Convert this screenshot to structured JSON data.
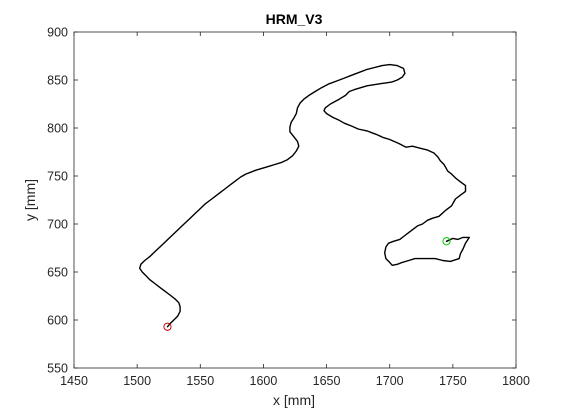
{
  "chart_data": {
    "type": "line",
    "title": "HRM_V3",
    "xlabel": "x [mm]",
    "ylabel": "y [mm]",
    "xlim": [
      1450,
      1800
    ],
    "ylim": [
      550,
      900
    ],
    "xticks": [
      1450,
      1500,
      1550,
      1600,
      1650,
      1700,
      1750,
      1800
    ],
    "yticks": [
      550,
      600,
      650,
      700,
      750,
      800,
      850,
      900
    ],
    "grid": false,
    "box": true,
    "series": [
      {
        "line_color": "#000000",
        "points": [
          [
            1745,
            682
          ],
          [
            1750,
            685
          ],
          [
            1754,
            684
          ],
          [
            1758,
            686
          ],
          [
            1763,
            686
          ],
          [
            1760,
            680
          ],
          [
            1758,
            674
          ],
          [
            1756,
            669
          ],
          [
            1755,
            664
          ],
          [
            1748,
            661
          ],
          [
            1742,
            662
          ],
          [
            1736,
            664
          ],
          [
            1728,
            664
          ],
          [
            1720,
            664
          ],
          [
            1715,
            662
          ],
          [
            1710,
            660
          ],
          [
            1706,
            658
          ],
          [
            1702,
            657
          ],
          [
            1700,
            660
          ],
          [
            1697,
            664
          ],
          [
            1696,
            670
          ],
          [
            1697,
            676
          ],
          [
            1699,
            680
          ],
          [
            1703,
            682
          ],
          [
            1708,
            684
          ],
          [
            1712,
            688
          ],
          [
            1714,
            690
          ],
          [
            1718,
            694
          ],
          [
            1722,
            698
          ],
          [
            1726,
            700
          ],
          [
            1730,
            704
          ],
          [
            1734,
            706
          ],
          [
            1739,
            708
          ],
          [
            1744,
            714
          ],
          [
            1749,
            719
          ],
          [
            1752,
            726
          ],
          [
            1756,
            730
          ],
          [
            1760,
            734
          ],
          [
            1760,
            740
          ],
          [
            1756,
            744
          ],
          [
            1752,
            748
          ],
          [
            1749,
            752
          ],
          [
            1746,
            755
          ],
          [
            1743,
            762
          ],
          [
            1740,
            766
          ],
          [
            1738,
            770
          ],
          [
            1735,
            774
          ],
          [
            1730,
            777
          ],
          [
            1724,
            779
          ],
          [
            1718,
            781
          ],
          [
            1713,
            780
          ],
          [
            1707,
            784
          ],
          [
            1700,
            788
          ],
          [
            1695,
            790
          ],
          [
            1690,
            793
          ],
          [
            1686,
            795
          ],
          [
            1682,
            797
          ],
          [
            1675,
            799
          ],
          [
            1670,
            802
          ],
          [
            1664,
            805
          ],
          [
            1660,
            808
          ],
          [
            1655,
            811
          ],
          [
            1650,
            815
          ],
          [
            1648,
            818
          ],
          [
            1649,
            821
          ],
          [
            1653,
            825
          ],
          [
            1660,
            830
          ],
          [
            1665,
            834
          ],
          [
            1668,
            838
          ],
          [
            1672,
            840
          ],
          [
            1677,
            842
          ],
          [
            1682,
            844
          ],
          [
            1687,
            845
          ],
          [
            1692,
            846
          ],
          [
            1697,
            847
          ],
          [
            1702,
            848
          ],
          [
            1706,
            850
          ],
          [
            1710,
            853
          ],
          [
            1712,
            857
          ],
          [
            1711,
            862
          ],
          [
            1706,
            865
          ],
          [
            1700,
            866
          ],
          [
            1694,
            865
          ],
          [
            1688,
            863
          ],
          [
            1682,
            861
          ],
          [
            1676,
            858
          ],
          [
            1670,
            855
          ],
          [
            1664,
            852
          ],
          [
            1658,
            849
          ],
          [
            1652,
            846
          ],
          [
            1646,
            842
          ],
          [
            1641,
            838
          ],
          [
            1636,
            834
          ],
          [
            1632,
            830
          ],
          [
            1629,
            826
          ],
          [
            1627,
            821
          ],
          [
            1626,
            815
          ],
          [
            1624,
            810
          ],
          [
            1622,
            806
          ],
          [
            1621,
            801
          ],
          [
            1621,
            796
          ],
          [
            1624,
            791
          ],
          [
            1627,
            786
          ],
          [
            1628,
            781
          ],
          [
            1626,
            776
          ],
          [
            1623,
            771
          ],
          [
            1619,
            767
          ],
          [
            1614,
            764
          ],
          [
            1609,
            762
          ],
          [
            1604,
            760
          ],
          [
            1599,
            758
          ],
          [
            1594,
            756
          ],
          [
            1590,
            754
          ],
          [
            1586,
            752
          ],
          [
            1582,
            749
          ],
          [
            1578,
            745
          ],
          [
            1574,
            741
          ],
          [
            1570,
            737
          ],
          [
            1566,
            733
          ],
          [
            1562,
            729
          ],
          [
            1558,
            725
          ],
          [
            1554,
            721
          ],
          [
            1550,
            716
          ],
          [
            1546,
            711
          ],
          [
            1542,
            706
          ],
          [
            1538,
            701
          ],
          [
            1534,
            696
          ],
          [
            1530,
            691
          ],
          [
            1526,
            686
          ],
          [
            1522,
            681
          ],
          [
            1518,
            676
          ],
          [
            1514,
            671
          ],
          [
            1510,
            666
          ],
          [
            1506,
            662
          ],
          [
            1503,
            658
          ],
          [
            1502,
            654
          ],
          [
            1504,
            650
          ],
          [
            1507,
            646
          ],
          [
            1510,
            642
          ],
          [
            1514,
            638
          ],
          [
            1518,
            634
          ],
          [
            1522,
            630
          ],
          [
            1526,
            626
          ],
          [
            1530,
            622
          ],
          [
            1533,
            618
          ],
          [
            1534,
            614
          ],
          [
            1534,
            609
          ],
          [
            1532,
            604
          ],
          [
            1529,
            600
          ],
          [
            1526,
            596
          ],
          [
            1524,
            593
          ]
        ]
      }
    ],
    "markers": [
      {
        "label_color": "#00cc00",
        "x": 1745,
        "y": 682,
        "shape": "circle"
      },
      {
        "label_color": "#cc0000",
        "x": 1524,
        "y": 593,
        "shape": "circle"
      }
    ]
  }
}
